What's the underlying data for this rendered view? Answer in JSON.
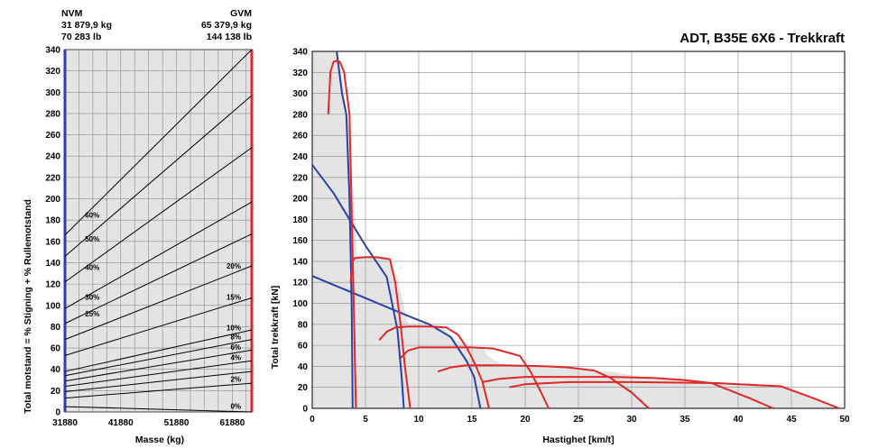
{
  "title": "ADT, B35E 6X6 - Trekkraft",
  "nvm": {
    "label": "NVM",
    "kg": "31 879,9 kg",
    "lb": "70 283 lb"
  },
  "gvm": {
    "label": "GVM",
    "kg": "65 379,9 kg",
    "lb": "144 138 lb"
  },
  "colors": {
    "empty": "#2b3fa8",
    "full": "#e02828",
    "curve": "#e02828",
    "envelope": "#2b3fa8",
    "fill": "#e4e4e4"
  },
  "chart_data": [
    {
      "type": "line",
      "xlabel": "Masse (kg)",
      "ylabel": "Total motstand = % Stigning + % Rullemotstand",
      "ylim": [
        0,
        340
      ],
      "yticks": [
        0,
        20,
        40,
        60,
        80,
        100,
        120,
        140,
        160,
        180,
        200,
        220,
        240,
        260,
        280,
        300,
        320,
        340
      ],
      "xlim": [
        31880,
        65380
      ],
      "xtick_labels": [
        "31880",
        "41880",
        "51880",
        "61880"
      ],
      "xtick_values": [
        31880,
        41880,
        51880,
        61880
      ],
      "grid": true,
      "series": [
        {
          "name": "0%",
          "x": [
            31880,
            65380
          ],
          "y": [
            5,
            0
          ]
        },
        {
          "name": "2%",
          "x": [
            31880,
            65380
          ],
          "y": [
            13,
            27
          ]
        },
        {
          "name": "",
          "x": [
            31880,
            65380
          ],
          "y": [
            19,
            38
          ]
        },
        {
          "name": "4%",
          "x": [
            31880,
            65380
          ],
          "y": [
            24,
            48
          ]
        },
        {
          "name": "6%",
          "x": [
            31880,
            65380
          ],
          "y": [
            29,
            58
          ]
        },
        {
          "name": "8%",
          "x": [
            31880,
            65380
          ],
          "y": [
            34,
            68
          ]
        },
        {
          "name": "10%",
          "x": [
            31880,
            65380
          ],
          "y": [
            38,
            77
          ]
        },
        {
          "name": "15%",
          "x": [
            31880,
            65380
          ],
          "y": [
            53,
            107
          ]
        },
        {
          "name": "20%",
          "x": [
            31880,
            65380
          ],
          "y": [
            68,
            137
          ]
        },
        {
          "name": "25%",
          "x": [
            31880,
            65380
          ],
          "y": [
            83,
            167
          ]
        },
        {
          "name": "30%",
          "x": [
            31880,
            65380
          ],
          "y": [
            97,
            197
          ]
        },
        {
          "name": "40%",
          "x": [
            31880,
            65380
          ],
          "y": [
            122,
            248
          ]
        },
        {
          "name": "50%",
          "x": [
            31880,
            65380
          ],
          "y": [
            146,
            297
          ]
        },
        {
          "name": "60%",
          "x": [
            31880,
            65380
          ],
          "y": [
            166,
            340
          ]
        }
      ]
    },
    {
      "type": "line",
      "title": "ADT, B35E 6X6 - Trekkraft",
      "xlabel": "Hastighet [km/t]",
      "ylabel": "Total trekkraft [kN]",
      "xlim": [
        0,
        50
      ],
      "ylim": [
        0,
        340
      ],
      "xticks": [
        0,
        5,
        10,
        15,
        20,
        25,
        30,
        35,
        40,
        45,
        50
      ],
      "yticks": [
        0,
        20,
        40,
        60,
        80,
        100,
        120,
        140,
        160,
        180,
        200,
        220,
        240,
        260,
        280,
        300,
        320,
        340
      ],
      "grid": true,
      "envelope": {
        "x": [
          0,
          1.5,
          2.4,
          3.0,
          3.6,
          4.2,
          5.5,
          7.0,
          8.0,
          9.0,
          12.0,
          13.5,
          15.0,
          16.0,
          16.5,
          18.0,
          20.0,
          22.0,
          28.0,
          32.0,
          38.0,
          44.0,
          49.5,
          0
        ],
        "y": [
          340,
          340,
          340,
          300,
          260,
          145,
          144,
          143,
          125,
          80,
          79,
          65,
          58,
          58,
          50,
          40,
          40,
          40,
          35,
          28,
          25,
          20,
          0,
          0
        ]
      },
      "series": [
        {
          "name": "",
          "x": [
            2.3,
            2.8,
            3.2,
            3.5,
            3.7,
            3.8
          ],
          "y": [
            340,
            300,
            280,
            200,
            100,
            0
          ]
        },
        {
          "name": "",
          "x": [
            0,
            2.0,
            3.8,
            5.0,
            7.0,
            8.0,
            8.4,
            8.6
          ],
          "y": [
            232,
            205,
            175,
            155,
            125,
            75,
            30,
            0
          ]
        },
        {
          "name": "",
          "x": [
            0,
            5.0,
            9.0,
            11.0,
            13.0,
            14.5,
            15.2,
            15.8
          ],
          "y": [
            126,
            105,
            88,
            80,
            68,
            45,
            30,
            0
          ]
        },
        {
          "name": "",
          "x": [
            1.5,
            1.7,
            2.0,
            2.3,
            2.6,
            3.0,
            3.5,
            3.9,
            4.1
          ],
          "y": [
            280,
            320,
            330,
            331,
            330,
            320,
            280,
            100,
            0
          ]
        },
        {
          "name": "",
          "x": [
            3.6,
            3.8,
            4.0,
            5.0,
            6.0,
            7.3,
            7.8,
            8.3,
            8.7,
            9.2
          ],
          "y": [
            120,
            140,
            143,
            144,
            144,
            142,
            120,
            80,
            40,
            0
          ]
        },
        {
          "name": "",
          "x": [
            6.3,
            7.0,
            7.8,
            9.0,
            11.0,
            12.6,
            13.7,
            14.5,
            15.3,
            16.0,
            16.6
          ],
          "y": [
            65,
            73,
            77,
            78,
            78,
            77,
            70,
            58,
            42,
            25,
            0
          ]
        },
        {
          "name": "",
          "x": [
            8.3,
            9.0,
            10.0,
            12.0,
            15.0,
            17.0,
            19.5,
            20.5,
            21.5,
            22.2
          ],
          "y": [
            48,
            55,
            58,
            58,
            58,
            57,
            50,
            35,
            15,
            0
          ]
        },
        {
          "name": "",
          "x": [
            11.8,
            13.0,
            14.5,
            18.0,
            22.0,
            24.0,
            26.5,
            28.0,
            30.0,
            31.6
          ],
          "y": [
            35,
            39,
            41,
            41,
            40,
            39,
            36,
            29,
            15,
            0
          ]
        },
        {
          "name": "",
          "x": [
            16.0,
            17.5,
            20.0,
            24.0,
            28.0,
            32.0,
            35.0,
            37.5,
            41.0,
            43.3
          ],
          "y": [
            25,
            28,
            30,
            30,
            30,
            29,
            27,
            24,
            10,
            0
          ]
        },
        {
          "name": "",
          "x": [
            18.5,
            20.0,
            24.0,
            30.0,
            38.0,
            42.0,
            44.0,
            47.0,
            49.5
          ],
          "y": [
            20,
            23,
            25,
            25,
            24,
            22,
            21,
            10,
            0
          ]
        }
      ]
    }
  ]
}
